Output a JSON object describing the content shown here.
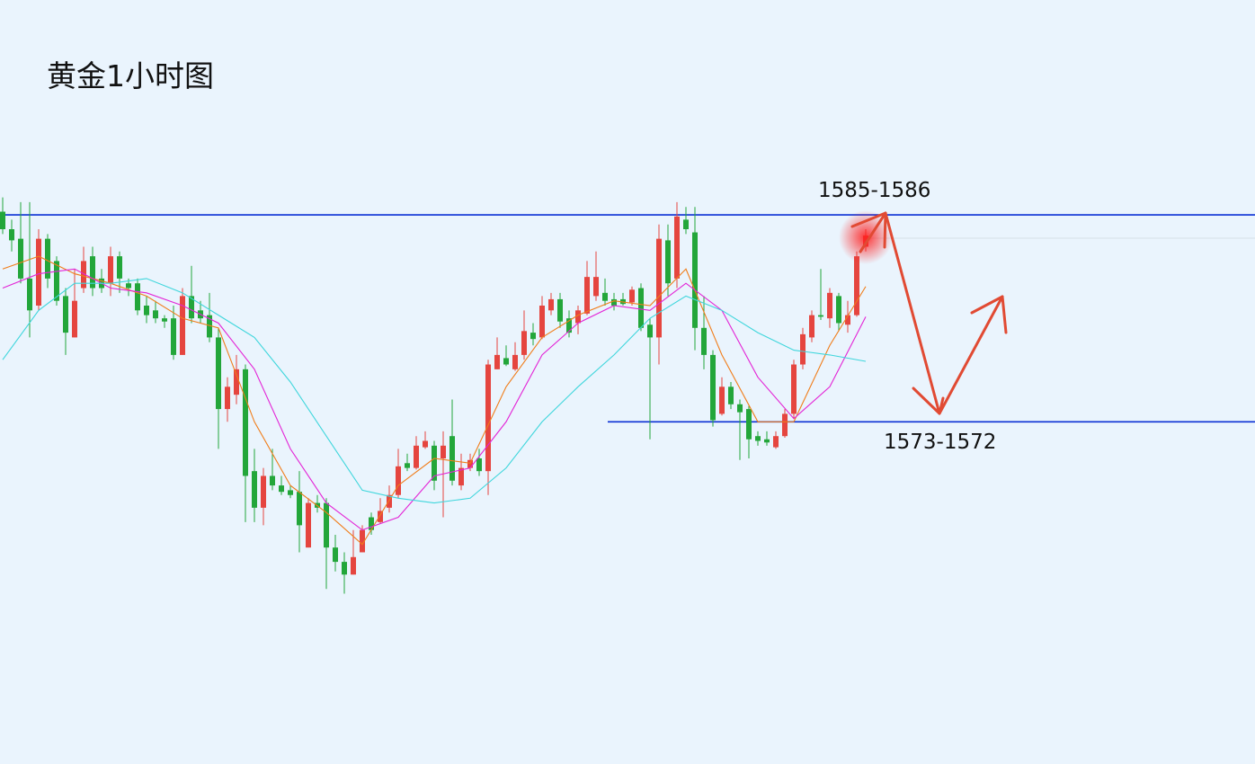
{
  "chart_data": {
    "type": "candlestick",
    "title": "黄金1小时图",
    "ylim": [
      1551,
      1599
    ],
    "up_color": "#e5453f",
    "down_color": "#23a63a",
    "candles": [
      [
        1585.7,
        1586.6,
        1584.3,
        1584.6
      ],
      [
        1584.6,
        1585.2,
        1583.2,
        1583.9
      ],
      [
        1584.0,
        1586.3,
        1581.2,
        1581.5
      ],
      [
        1581.5,
        1586.3,
        1577.8,
        1579.5
      ],
      [
        1579.8,
        1584.6,
        1579.5,
        1584.0
      ],
      [
        1584.0,
        1584.3,
        1580.9,
        1581.5
      ],
      [
        1582.6,
        1582.9,
        1579.8,
        1580.1
      ],
      [
        1580.4,
        1580.9,
        1576.7,
        1578.1
      ],
      [
        1577.8,
        1582.1,
        1577.8,
        1580.1
      ],
      [
        1580.9,
        1583.5,
        1580.6,
        1582.6
      ],
      [
        1582.9,
        1583.5,
        1580.4,
        1580.9
      ],
      [
        1581.5,
        1582.1,
        1580.6,
        1580.9
      ],
      [
        1581.2,
        1583.5,
        1580.4,
        1582.9
      ],
      [
        1582.9,
        1583.2,
        1580.6,
        1581.5
      ],
      [
        1581.2,
        1581.5,
        1580.4,
        1580.9
      ],
      [
        1581.2,
        1581.5,
        1579.2,
        1579.5
      ],
      [
        1579.8,
        1580.4,
        1578.7,
        1579.2
      ],
      [
        1579.5,
        1580.1,
        1578.7,
        1579.0
      ],
      [
        1579.0,
        1579.2,
        1578.4,
        1578.8
      ],
      [
        1579.0,
        1579.8,
        1576.4,
        1576.7
      ],
      [
        1576.7,
        1580.9,
        1576.7,
        1580.4
      ],
      [
        1580.4,
        1582.3,
        1578.7,
        1579.0
      ],
      [
        1579.5,
        1580.1,
        1578.7,
        1579.0
      ],
      [
        1579.2,
        1580.6,
        1577.5,
        1577.8
      ],
      [
        1577.8,
        1578.4,
        1570.8,
        1573.3
      ],
      [
        1573.3,
        1575.3,
        1572.5,
        1574.7
      ],
      [
        1574.2,
        1576.7,
        1573.6,
        1575.8
      ],
      [
        1575.8,
        1576.1,
        1566.2,
        1569.1
      ],
      [
        1569.4,
        1570.8,
        1566.2,
        1567.1
      ],
      [
        1567.1,
        1569.6,
        1566.0,
        1569.1
      ],
      [
        1569.1,
        1570.8,
        1568.2,
        1568.5
      ],
      [
        1568.5,
        1569.1,
        1567.9,
        1568.1
      ],
      [
        1568.2,
        1568.5,
        1567.7,
        1567.9
      ],
      [
        1568.1,
        1569.4,
        1564.3,
        1566.0
      ],
      [
        1564.6,
        1567.7,
        1564.6,
        1567.4
      ],
      [
        1567.4,
        1567.9,
        1566.8,
        1567.1
      ],
      [
        1567.4,
        1567.7,
        1562.0,
        1564.6
      ],
      [
        1564.6,
        1565.4,
        1563.1,
        1563.7
      ],
      [
        1563.7,
        1564.3,
        1561.7,
        1562.9
      ],
      [
        1562.9,
        1565.7,
        1562.9,
        1564.0
      ],
      [
        1564.3,
        1566.0,
        1564.3,
        1565.7
      ],
      [
        1566.5,
        1566.8,
        1565.4,
        1565.7
      ],
      [
        1566.2,
        1567.7,
        1566.1,
        1566.9
      ],
      [
        1567.1,
        1568.5,
        1566.8,
        1567.9
      ],
      [
        1567.9,
        1570.8,
        1567.7,
        1569.7
      ],
      [
        1569.9,
        1570.5,
        1569.4,
        1569.6
      ],
      [
        1569.6,
        1571.6,
        1569.5,
        1571.0
      ],
      [
        1570.9,
        1571.9,
        1570.8,
        1571.3
      ],
      [
        1571.0,
        1571.3,
        1568.2,
        1568.8
      ],
      [
        1570.2,
        1571.9,
        1566.5,
        1571.0
      ],
      [
        1571.6,
        1573.9,
        1568.5,
        1568.8
      ],
      [
        1568.5,
        1570.5,
        1568.2,
        1569.6
      ],
      [
        1569.6,
        1570.5,
        1569.4,
        1570.1
      ],
      [
        1570.2,
        1570.8,
        1569.1,
        1569.4
      ],
      [
        1569.4,
        1576.4,
        1567.9,
        1576.1
      ],
      [
        1575.8,
        1577.8,
        1575.8,
        1576.7
      ],
      [
        1576.5,
        1577.3,
        1576.0,
        1576.1
      ],
      [
        1575.8,
        1577.5,
        1575.7,
        1576.7
      ],
      [
        1576.7,
        1579.5,
        1576.4,
        1578.2
      ],
      [
        1578.1,
        1578.7,
        1577.3,
        1577.7
      ],
      [
        1577.8,
        1580.4,
        1577.7,
        1579.8
      ],
      [
        1579.5,
        1580.6,
        1579.2,
        1580.2
      ],
      [
        1580.2,
        1580.6,
        1578.4,
        1578.8
      ],
      [
        1579.0,
        1579.5,
        1577.8,
        1578.1
      ],
      [
        1578.7,
        1579.8,
        1578.0,
        1579.5
      ],
      [
        1579.3,
        1582.6,
        1579.2,
        1581.6
      ],
      [
        1580.4,
        1583.2,
        1580.1,
        1581.6
      ],
      [
        1580.6,
        1581.5,
        1579.8,
        1580.1
      ],
      [
        1580.2,
        1580.6,
        1579.5,
        1579.8
      ],
      [
        1580.2,
        1580.6,
        1579.8,
        1579.9
      ],
      [
        1580.0,
        1581.0,
        1579.8,
        1580.8
      ],
      [
        1580.9,
        1581.2,
        1578.2,
        1578.4
      ],
      [
        1578.6,
        1579.0,
        1571.4,
        1577.8
      ],
      [
        1577.8,
        1584.9,
        1576.1,
        1584.0
      ],
      [
        1583.9,
        1584.9,
        1580.4,
        1581.2
      ],
      [
        1581.5,
        1586.3,
        1580.9,
        1585.4
      ],
      [
        1585.2,
        1586.0,
        1584.3,
        1584.6
      ],
      [
        1584.4,
        1586.0,
        1577.0,
        1578.4
      ],
      [
        1578.4,
        1580.4,
        1575.8,
        1576.7
      ],
      [
        1576.7,
        1577.0,
        1572.2,
        1572.6
      ],
      [
        1573.0,
        1575.3,
        1572.9,
        1574.7
      ],
      [
        1574.7,
        1575.0,
        1573.3,
        1573.6
      ],
      [
        1573.6,
        1573.9,
        1570.1,
        1573.1
      ],
      [
        1573.3,
        1573.5,
        1570.2,
        1571.4
      ],
      [
        1571.6,
        1571.9,
        1571.0,
        1571.3
      ],
      [
        1571.4,
        1571.9,
        1571.0,
        1571.2
      ],
      [
        1570.9,
        1571.9,
        1570.8,
        1571.6
      ],
      [
        1571.6,
        1573.3,
        1571.5,
        1573.0
      ],
      [
        1573.0,
        1576.4,
        1572.7,
        1576.1
      ],
      [
        1576.1,
        1578.4,
        1575.8,
        1578.0
      ],
      [
        1577.8,
        1579.5,
        1577.5,
        1579.2
      ],
      [
        1579.2,
        1582.1,
        1578.9,
        1579.1
      ],
      [
        1579.0,
        1580.9,
        1578.4,
        1580.6
      ],
      [
        1580.4,
        1580.6,
        1578.2,
        1578.7
      ],
      [
        1578.6,
        1580.1,
        1578.1,
        1579.2
      ],
      [
        1579.2,
        1583.2,
        1579.1,
        1582.9
      ],
      [
        1583.5,
        1584.6,
        1583.2,
        1584.2
      ]
    ],
    "moving_averages": [
      {
        "color": "#f07d1a",
        "x": [
          0,
          4,
          8,
          12,
          16,
          20,
          24,
          28,
          32,
          36,
          40,
          44,
          48,
          52,
          56,
          60,
          64,
          68,
          72,
          76,
          80,
          84,
          88,
          92,
          96
        ],
        "values": [
          1582.1,
          1582.9,
          1581.8,
          1581.2,
          1580.4,
          1579.0,
          1578.4,
          1572.5,
          1568.5,
          1566.8,
          1564.8,
          1568.5,
          1570.2,
          1569.9,
          1574.7,
          1577.8,
          1579.2,
          1580.1,
          1579.8,
          1582.1,
          1576.7,
          1572.5,
          1572.5,
          1577.3,
          1581.0
        ]
      },
      {
        "color": "#e324d6",
        "x": [
          0,
          4,
          8,
          12,
          16,
          20,
          24,
          28,
          32,
          36,
          40,
          44,
          48,
          52,
          56,
          60,
          64,
          68,
          72,
          76,
          80,
          84,
          88,
          92,
          96
        ],
        "values": [
          1580.9,
          1581.8,
          1582.1,
          1580.9,
          1580.6,
          1579.8,
          1578.7,
          1575.8,
          1570.8,
          1567.4,
          1565.7,
          1566.5,
          1569.1,
          1569.6,
          1572.5,
          1576.7,
          1578.7,
          1579.8,
          1579.5,
          1581.2,
          1579.5,
          1575.3,
          1572.7,
          1574.7,
          1579.1
        ]
      },
      {
        "color": "#3fd6dc",
        "x": [
          0,
          4,
          8,
          12,
          16,
          20,
          24,
          28,
          32,
          36,
          40,
          44,
          48,
          52,
          56,
          60,
          64,
          68,
          72,
          76,
          80,
          84,
          88,
          92,
          96
        ],
        "values": [
          1576.4,
          1579.5,
          1581.2,
          1581.2,
          1581.5,
          1580.6,
          1579.2,
          1577.8,
          1575.0,
          1571.6,
          1568.2,
          1567.7,
          1567.4,
          1567.7,
          1569.6,
          1572.5,
          1574.7,
          1576.7,
          1579.0,
          1580.4,
          1579.5,
          1578.1,
          1577.0,
          1576.7,
          1576.3
        ]
      }
    ],
    "levels": [
      {
        "label": "1585-1586",
        "value": 1585.5,
        "color": "#0a2fd4"
      },
      {
        "label": "1573-1572",
        "value": 1572.5,
        "color": "#0a2fd4"
      }
    ]
  }
}
